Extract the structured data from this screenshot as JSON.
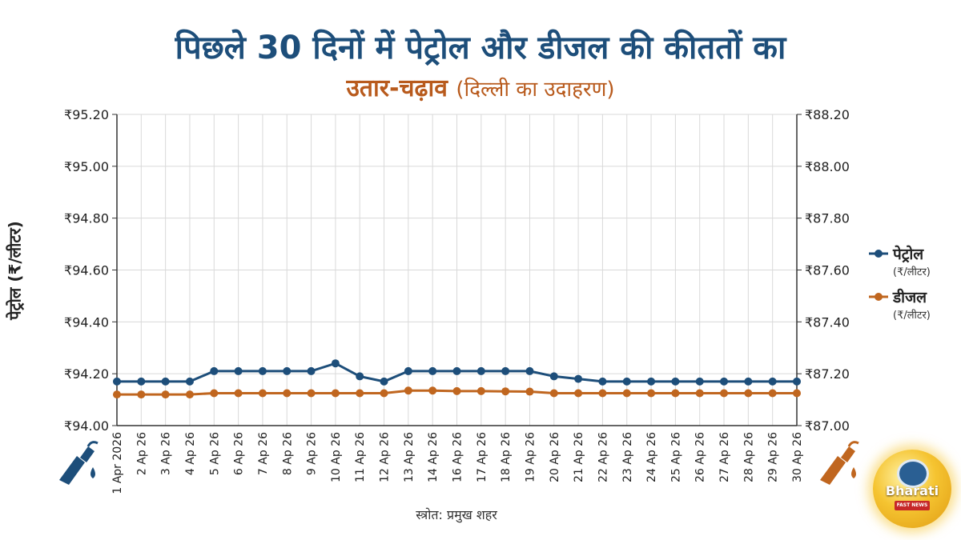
{
  "title": {
    "line1": "पिछले 30 दिनों में पेट्रोल और डीजल की कीततों का",
    "line2_main": "उतार-चढ़ाव",
    "line2_paren": "(दिल्ली का उदाहरण)"
  },
  "source": "स्त्रोत: प्रमुख शहर",
  "logo": {
    "word": "Bharati",
    "tag": "FAST NEWS"
  },
  "colors": {
    "petrol": "#1d4e7a",
    "diesel": "#c0661f",
    "grid": "#d9d9d9"
  },
  "icons": {
    "left": "fuel-pump-icon",
    "right": "fuel-pump-icon"
  },
  "chart_data": {
    "type": "line",
    "ylabel_left": "पेट्रोल (₹/लीटर)",
    "ylim_left": [
      94.0,
      95.2
    ],
    "ylim_right": [
      87.0,
      88.2
    ],
    "yticks_left": [
      "₹94.00",
      "₹94.20",
      "₹94.40",
      "₹94.60",
      "₹94.80",
      "₹95.00",
      "₹95.20"
    ],
    "yticks_right": [
      "₹87.00",
      "₹87.20",
      "₹87.40",
      "₹87.60",
      "₹87.80",
      "₹88.00",
      "₹88.20"
    ],
    "grid": true,
    "legend_position": "right",
    "categories": [
      "1 Apr 2026",
      "2 Ap 26",
      "3 Ap 26",
      "4 Ap 26",
      "5 Ap 26",
      "6 Ap 26",
      "7 Ap 26",
      "8 Ap 26",
      "9 Ap 26",
      "10 Ap 26",
      "11 Ap 26",
      "12 Ap 26",
      "13 Ap 26",
      "14 Ap 26",
      "16 Ap 26",
      "17 Ap 26",
      "18 Ap 26",
      "19 Ap 26",
      "20 Ap 26",
      "21 Ap 26",
      "22 Ap 26",
      "23 Ap 26",
      "24 Ap 26",
      "25 Ap 26",
      "26 Ap 26",
      "27 Ap 26",
      "28 Ap 26",
      "29 Ap 26",
      "30 Ap 26"
    ],
    "series": [
      {
        "name": "पेट्रोल",
        "unit": "(₹/लीटर)",
        "axis": "left",
        "values": [
          94.17,
          94.17,
          94.17,
          94.17,
          94.21,
          94.21,
          94.21,
          94.21,
          94.21,
          94.24,
          94.19,
          94.17,
          94.21,
          94.21,
          94.21,
          94.21,
          94.21,
          94.21,
          94.19,
          94.18,
          94.17,
          94.17,
          94.17,
          94.17,
          94.17,
          94.17,
          94.17,
          94.17,
          94.17
        ]
      },
      {
        "name": "डीजल",
        "unit": "(₹/लीटर)",
        "axis": "right",
        "values": [
          87.12,
          87.12,
          87.12,
          87.12,
          87.125,
          87.125,
          87.125,
          87.125,
          87.125,
          87.125,
          87.125,
          87.125,
          87.135,
          87.135,
          87.133,
          87.133,
          87.132,
          87.131,
          87.125,
          87.125,
          87.125,
          87.125,
          87.125,
          87.125,
          87.125,
          87.125,
          87.125,
          87.125,
          87.125
        ]
      }
    ]
  }
}
